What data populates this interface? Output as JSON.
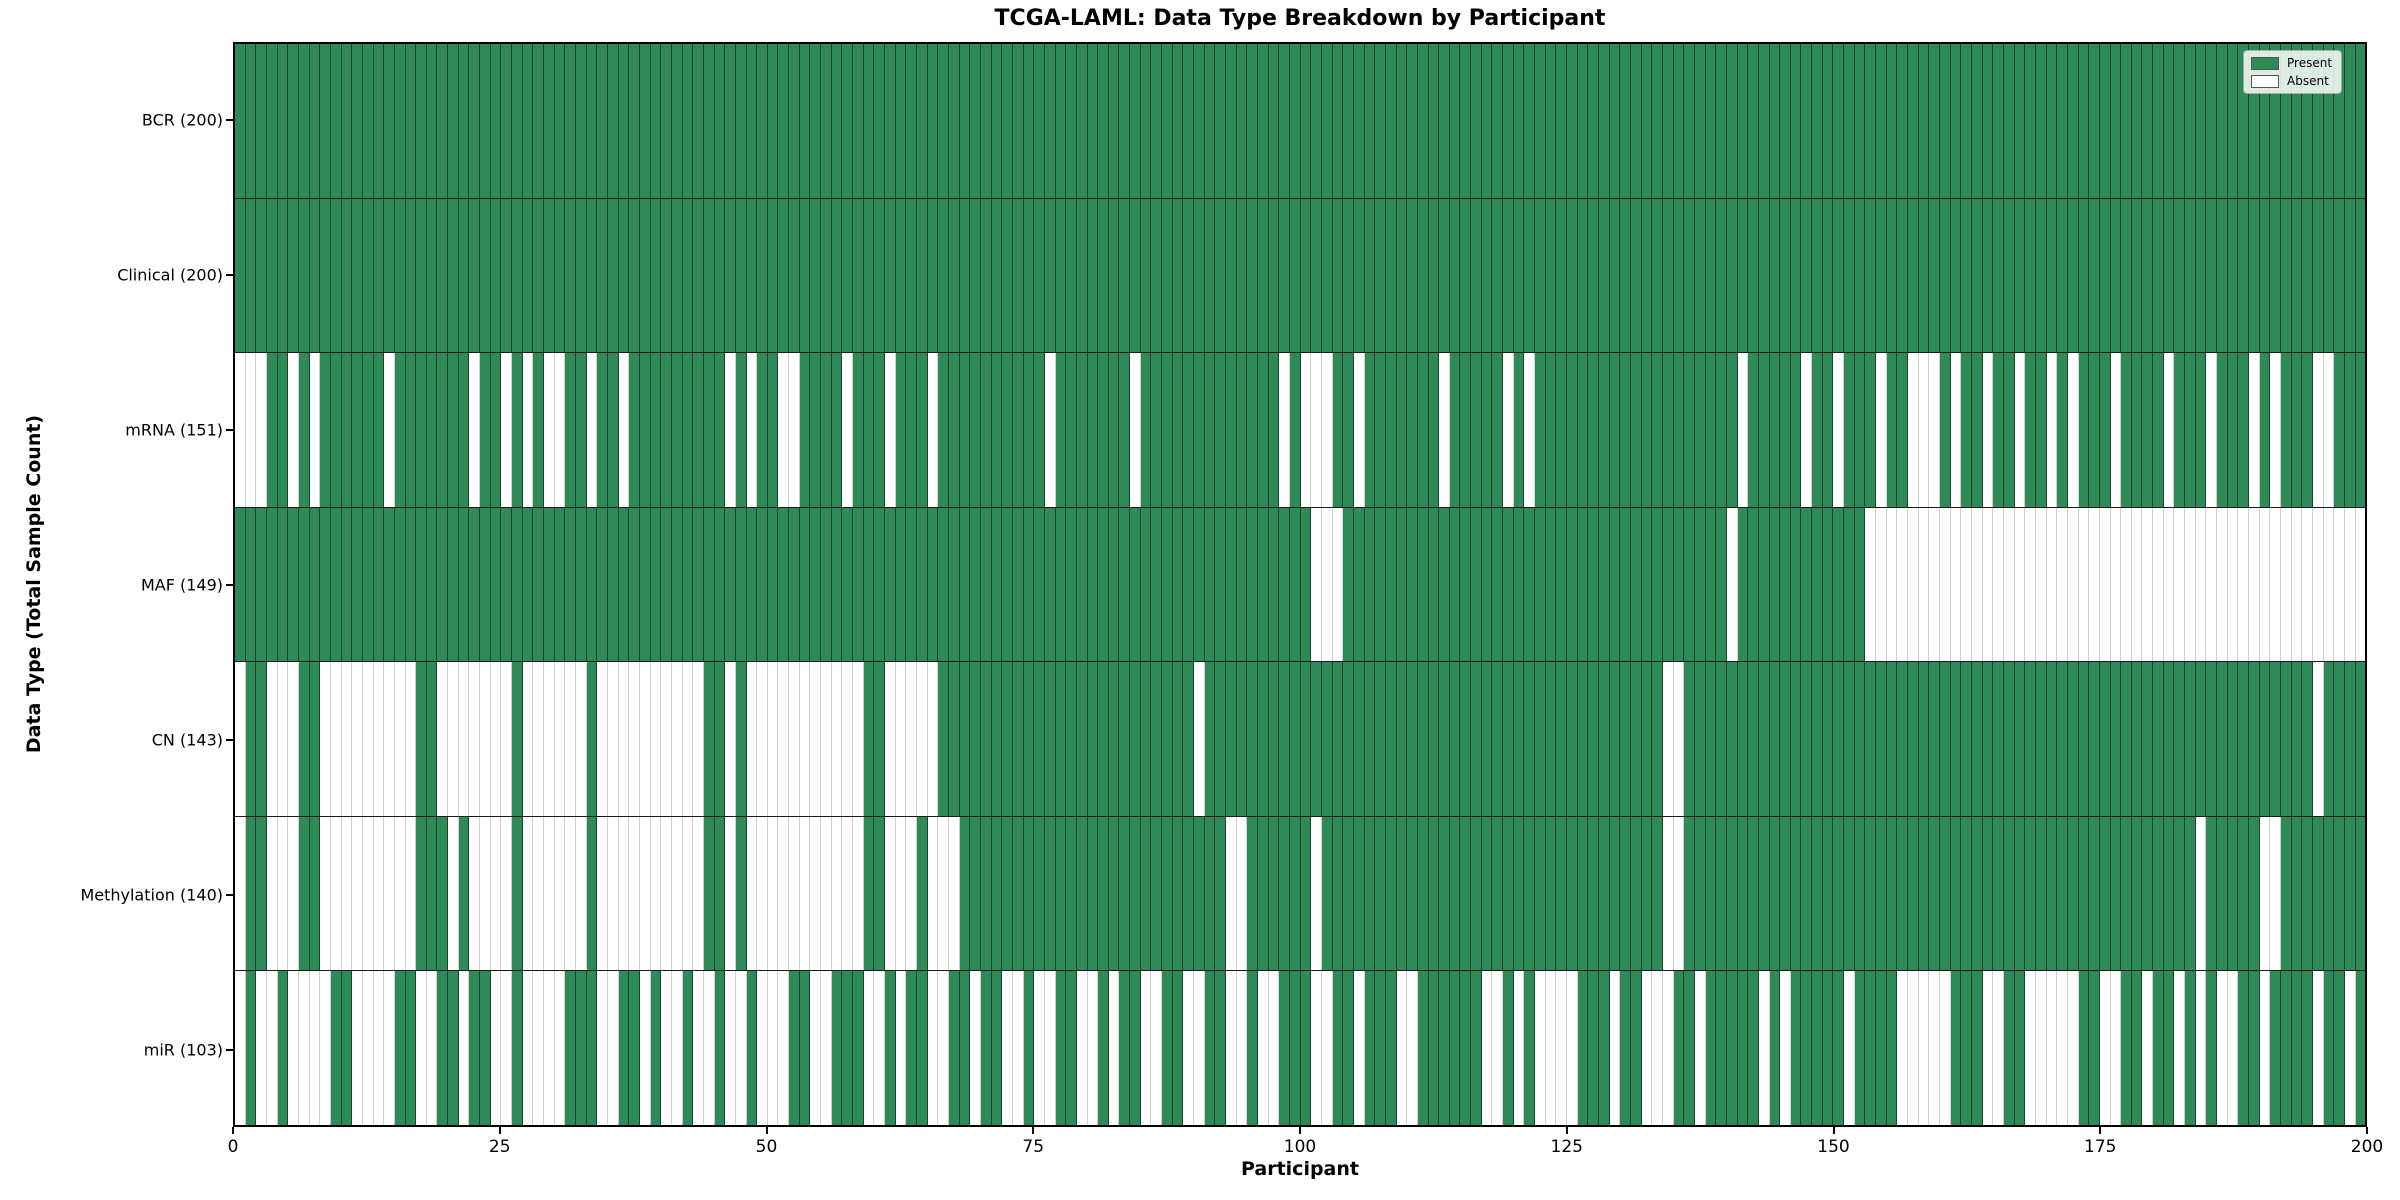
{
  "figure": {
    "title": "TCGA-LAML: Data Type Breakdown by Participant",
    "xlabel": "Participant",
    "ylabel": "Data Type (Total Sample Count)"
  },
  "chart_data": {
    "type": "heatmap",
    "title": "TCGA-LAML: Data Type Breakdown by Participant",
    "xlabel": "Participant",
    "ylabel": "Data Type (Total Sample Count)",
    "n_participants": 200,
    "x_range": [
      0,
      200
    ],
    "x_ticks": [
      0,
      25,
      50,
      75,
      100,
      125,
      150,
      175,
      200
    ],
    "present_color": "#2E8B57",
    "absent_color": "#ffffff",
    "legend": [
      {
        "label": "Present",
        "color": "#2E8B57"
      },
      {
        "label": "Absent",
        "color": "#ffffff"
      }
    ],
    "legend_position": "upper right",
    "rows": [
      {
        "label": "BCR (200)",
        "name": "BCR",
        "total": 200,
        "absent": []
      },
      {
        "label": "Clinical (200)",
        "name": "Clinical",
        "total": 200,
        "absent": []
      },
      {
        "label": "mRNA (151)",
        "name": "mRNA",
        "total": 151,
        "absent": [
          0,
          1,
          2,
          5,
          7,
          14,
          22,
          25,
          27,
          29,
          30,
          33,
          36,
          46,
          48,
          51,
          52,
          57,
          61,
          65,
          76,
          84,
          98,
          100,
          101,
          102,
          105,
          113,
          119,
          121,
          141,
          147,
          150,
          154,
          157,
          158,
          159,
          161,
          164,
          167,
          170,
          172,
          176,
          181,
          185,
          189,
          191,
          195,
          196
        ]
      },
      {
        "label": "MAF (149)",
        "name": "MAF",
        "total": 149,
        "absent": [
          101,
          102,
          103,
          140,
          153,
          154,
          155,
          156,
          157,
          158,
          159,
          160,
          161,
          162,
          163,
          164,
          165,
          166,
          167,
          168,
          169,
          170,
          171,
          172,
          173,
          174,
          175,
          176,
          177,
          178,
          179,
          180,
          181,
          182,
          183,
          184,
          185,
          186,
          187,
          188,
          189,
          190,
          191,
          192,
          193,
          194,
          195,
          196,
          197,
          198,
          199
        ]
      },
      {
        "label": "CN (143)",
        "name": "CN",
        "total": 143,
        "absent": [
          0,
          3,
          4,
          5,
          8,
          9,
          10,
          11,
          12,
          13,
          14,
          15,
          16,
          19,
          20,
          21,
          22,
          23,
          24,
          25,
          27,
          28,
          29,
          30,
          31,
          32,
          34,
          35,
          36,
          37,
          38,
          39,
          40,
          41,
          42,
          43,
          46,
          48,
          49,
          50,
          51,
          52,
          53,
          54,
          55,
          56,
          57,
          58,
          61,
          62,
          63,
          64,
          65,
          90,
          134,
          135,
          195
        ]
      },
      {
        "label": "Methylation (140)",
        "name": "Methylation",
        "total": 140,
        "absent": [
          0,
          3,
          4,
          5,
          8,
          9,
          10,
          11,
          12,
          13,
          14,
          15,
          16,
          20,
          22,
          23,
          24,
          25,
          27,
          28,
          29,
          30,
          31,
          32,
          34,
          35,
          36,
          37,
          38,
          39,
          40,
          41,
          42,
          43,
          46,
          48,
          49,
          50,
          51,
          52,
          53,
          54,
          55,
          56,
          57,
          58,
          61,
          62,
          63,
          65,
          66,
          67,
          93,
          94,
          101,
          134,
          135,
          184,
          190,
          191
        ]
      },
      {
        "label": "miR (103)",
        "name": "miR",
        "total": 103,
        "absent": [
          0,
          2,
          3,
          5,
          6,
          7,
          8,
          11,
          12,
          13,
          14,
          17,
          18,
          21,
          24,
          25,
          27,
          28,
          29,
          30,
          34,
          35,
          38,
          40,
          41,
          43,
          44,
          46,
          47,
          49,
          50,
          51,
          54,
          55,
          59,
          60,
          62,
          65,
          66,
          69,
          72,
          73,
          75,
          76,
          79,
          80,
          82,
          85,
          86,
          89,
          90,
          93,
          94,
          96,
          97,
          101,
          102,
          105,
          109,
          110,
          117,
          118,
          120,
          122,
          123,
          124,
          125,
          129,
          132,
          133,
          134,
          137,
          143,
          145,
          151,
          156,
          157,
          158,
          159,
          160,
          164,
          165,
          168,
          169,
          170,
          171,
          172,
          175,
          176,
          179,
          182,
          184,
          186,
          187,
          190,
          195,
          198
        ]
      }
    ]
  }
}
